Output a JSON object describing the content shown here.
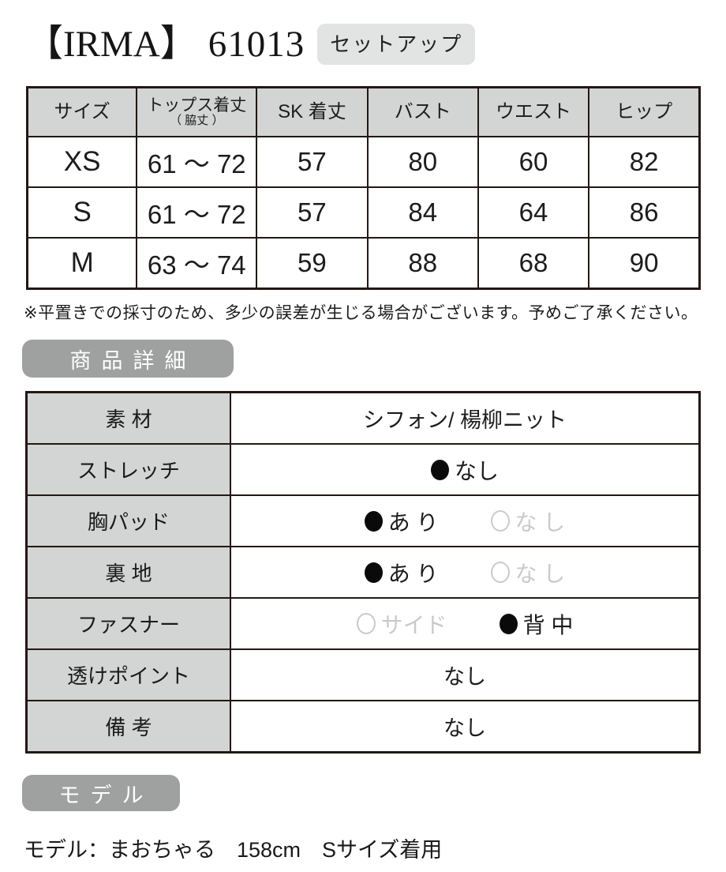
{
  "header": {
    "brand": "【IRMA】",
    "item_number": "61013",
    "badge": "セットアップ"
  },
  "size_table": {
    "columns": [
      {
        "text": "サイズ"
      },
      {
        "text": "トップス着丈",
        "sub": "（ 脇丈 ）"
      },
      {
        "text": "SK 着丈"
      },
      {
        "text": "バスト"
      },
      {
        "text": "ウエスト"
      },
      {
        "text": "ヒップ"
      }
    ],
    "rows": [
      [
        "XS",
        "61 ～ 72",
        "57",
        "80",
        "60",
        "82"
      ],
      [
        "S",
        "61 ～ 72",
        "57",
        "84",
        "64",
        "86"
      ],
      [
        "M",
        "63 ～ 74",
        "59",
        "88",
        "68",
        "90"
      ]
    ]
  },
  "note": "※平置きでの採寸のため、多少の誤差が生じる場合がございます。予めご了承ください。",
  "detail": {
    "heading": "商品詳細",
    "rows": [
      {
        "label": "素 材",
        "type": "text",
        "value": "シフォン/ 楊柳ニット"
      },
      {
        "label": "ストレッチ",
        "type": "options",
        "options": [
          {
            "text": "なし",
            "active": true
          }
        ]
      },
      {
        "label": "胸パッド",
        "type": "options",
        "options": [
          {
            "text": "あ り",
            "active": true
          },
          {
            "text": "な し",
            "active": false
          }
        ]
      },
      {
        "label": "裏 地",
        "type": "options",
        "options": [
          {
            "text": "あ り",
            "active": true
          },
          {
            "text": "な し",
            "active": false
          }
        ]
      },
      {
        "label": "ファスナー",
        "type": "options",
        "options": [
          {
            "text": "サイド",
            "active": false
          },
          {
            "text": "背 中",
            "active": true
          }
        ]
      },
      {
        "label": "透けポイント",
        "type": "text",
        "value": "なし"
      },
      {
        "label": "備 考",
        "type": "text",
        "value": "なし"
      }
    ]
  },
  "model": {
    "heading": "モデル",
    "text": "モデル：まおちゃる　158cm　Sサイズ着用"
  },
  "colors": {
    "border": "#231815",
    "table_header_bg": "#d3d4d4",
    "section_heading_bg": "#9fa0a0",
    "badge_bg": "#e2e3e3",
    "inactive_option": "#c9caca",
    "active_option": "#0a0a0a"
  }
}
